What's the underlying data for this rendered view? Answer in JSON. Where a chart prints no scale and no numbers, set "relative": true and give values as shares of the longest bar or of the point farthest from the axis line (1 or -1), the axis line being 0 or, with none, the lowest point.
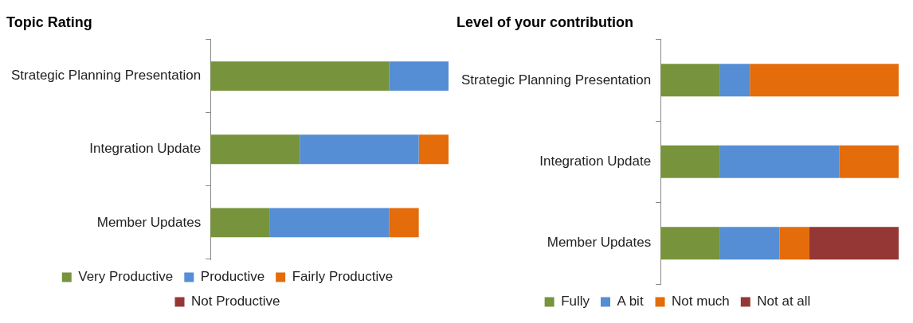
{
  "chart_data": [
    {
      "type": "bar",
      "orientation": "horizontal",
      "stacked": true,
      "relative": true,
      "title": "Topic Rating",
      "categories": [
        "Strategic Planning Presentation",
        "Integration Update",
        "Member Updates"
      ],
      "legend": "bottom",
      "series": [
        {
          "name": "Very Productive",
          "color": "#77933c",
          "values": [
            0.75,
            0.375,
            0.25
          ]
        },
        {
          "name": "Productive",
          "color": "#558ed5",
          "values": [
            0.25,
            0.5,
            0.5
          ]
        },
        {
          "name": "Fairly Productive",
          "color": "#e46c0a",
          "values": [
            null,
            0.125,
            0.125
          ]
        },
        {
          "name": "Not Productive",
          "color": "#953735",
          "values": [
            null,
            null,
            null
          ]
        }
      ]
    },
    {
      "type": "bar",
      "orientation": "horizontal",
      "stacked": true,
      "relative": true,
      "title": "Level of your contribution",
      "categories": [
        "Strategic Planning Presentation",
        "Integration Update",
        "Member Updates"
      ],
      "legend": "bottom",
      "series": [
        {
          "name": "Fully",
          "color": "#77933c",
          "values": [
            0.25,
            0.25,
            0.25
          ]
        },
        {
          "name": "A bit",
          "color": "#558ed5",
          "values": [
            0.125,
            0.5,
            0.25
          ]
        },
        {
          "name": "Not much",
          "color": "#e46c0a",
          "values": [
            0.625,
            0.25,
            0.125
          ]
        },
        {
          "name": "Not at all",
          "color": "#953735",
          "values": [
            null,
            null,
            0.375
          ]
        }
      ]
    }
  ]
}
